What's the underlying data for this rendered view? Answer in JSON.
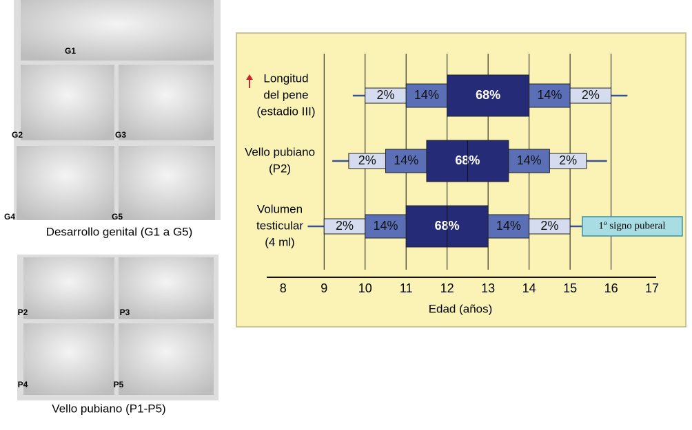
{
  "figure": {
    "genital_caption": "Desarrollo genital (G1 a G5)",
    "genital_labels": [
      "G1",
      "G2",
      "G3",
      "G4",
      "G5"
    ],
    "pubic_caption": "Vello pubiano (P1-P5)",
    "pubic_labels": [
      "P2",
      "P3",
      "P4",
      "P5"
    ]
  },
  "chart_data": {
    "type": "percentile-range",
    "xlabel": "Edad (años)",
    "xlim": [
      7.6,
      17.1
    ],
    "xticks": [
      8,
      9,
      10,
      11,
      12,
      13,
      14,
      15,
      16,
      17
    ],
    "grid": true,
    "band_percents": [
      2,
      14,
      68,
      14,
      2
    ],
    "band_labels": [
      "2%",
      "14%",
      "68%",
      "14%",
      "2%"
    ],
    "colors": [
      "#d6dcf0",
      "#5a6fb5",
      "#262b78",
      "#5a6fb5",
      "#d6dcf0"
    ],
    "rows": [
      {
        "label": [
          "Longitud",
          "del pene",
          "(estadio III)"
        ],
        "bounds": [
          9.7,
          10,
          11,
          12,
          14,
          15,
          16,
          16.4
        ]
      },
      {
        "label": [
          "Vello pubiano",
          "(P2)"
        ],
        "bounds": [
          9.2,
          9.6,
          10.5,
          11.5,
          13.5,
          14.5,
          15.4,
          15.9
        ],
        "median": 12.5
      },
      {
        "label": [
          "Volumen",
          "testicular",
          "(4 ml)"
        ],
        "bounds": [
          8.6,
          9,
          10,
          11,
          13,
          14,
          15,
          15.3
        ],
        "median": 12,
        "annotation": "1º signo puberal"
      }
    ]
  }
}
